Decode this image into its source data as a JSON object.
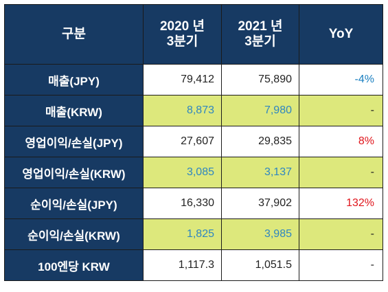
{
  "header": {
    "category": "구분",
    "col2020_line1": "2020 년",
    "col2020_line2": "3분기",
    "col2021_line1": "2021 년",
    "col2021_line2": "3분기",
    "yoy": "YoY"
  },
  "rows": [
    {
      "label": "매출(JPY)",
      "v2020": "79,412",
      "v2021": "75,890",
      "yoy": "-4%"
    },
    {
      "label": "매출(KRW)",
      "v2020": "8,873",
      "v2021": "7,980",
      "yoy": "-"
    },
    {
      "label": "영업이익/손실(JPY)",
      "v2020": "27,607",
      "v2021": "29,835",
      "yoy": "8%"
    },
    {
      "label": "영업이익/손실(KRW)",
      "v2020": "3,085",
      "v2021": "3,137",
      "yoy": "-"
    },
    {
      "label": "순이익/손실(JPY)",
      "v2020": "16,330",
      "v2021": "37,902",
      "yoy": "132%"
    },
    {
      "label": "순이익/손실(KRW)",
      "v2020": "1,825",
      "v2021": "3,985",
      "yoy": "-"
    },
    {
      "label": "100엔당 KRW",
      "v2020": "1,117.3",
      "v2021": "1,051.5",
      "yoy": "-"
    }
  ],
  "colors": {
    "header_bg": "#173a63",
    "highlight_bg": "#dde87c",
    "krw_value": "#2e86c1",
    "yoy_negative": "#1a7fc0",
    "yoy_positive": "#e0141b"
  }
}
